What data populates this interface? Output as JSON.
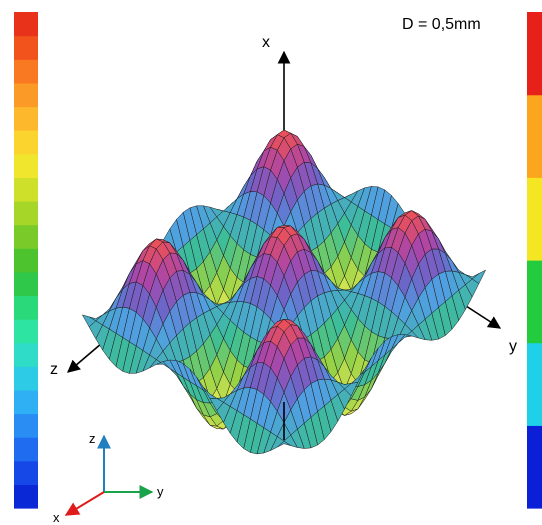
{
  "parameter_label": "D = 0,5mm",
  "main_axes": {
    "x": "x",
    "y": "y",
    "z": "z"
  },
  "triad_axes": {
    "x": "x",
    "y": "y",
    "z": "z"
  },
  "colors": {
    "axis_main": "#000000",
    "triad_z": "#1f7fbf",
    "triad_y": "#19a34a",
    "triad_x": "#e01b1b",
    "mesh_line": "#1a1a1a"
  },
  "colorbar_left": [
    "#0a28d6",
    "#1648e8",
    "#1f6cf0",
    "#2a8df4",
    "#2fb0f4",
    "#2ecbe6",
    "#2fdcc8",
    "#2ee4a3",
    "#2ad97a",
    "#2fc84a",
    "#4dc42e",
    "#7acb2a",
    "#a6d627",
    "#cfe02a",
    "#f0e62e",
    "#fbd52e",
    "#fdb82b",
    "#fc9a27",
    "#f87922",
    "#f2531c",
    "#e8321a"
  ],
  "colorbar_right": [
    "#0a1fd6",
    "#0a1fd6",
    "#1fd0e8",
    "#1fd0e8",
    "#22cc3e",
    "#22cc3e",
    "#f5e624",
    "#f5e624",
    "#fca51e",
    "#fca51e",
    "#e8201a",
    "#e8201a"
  ]
}
